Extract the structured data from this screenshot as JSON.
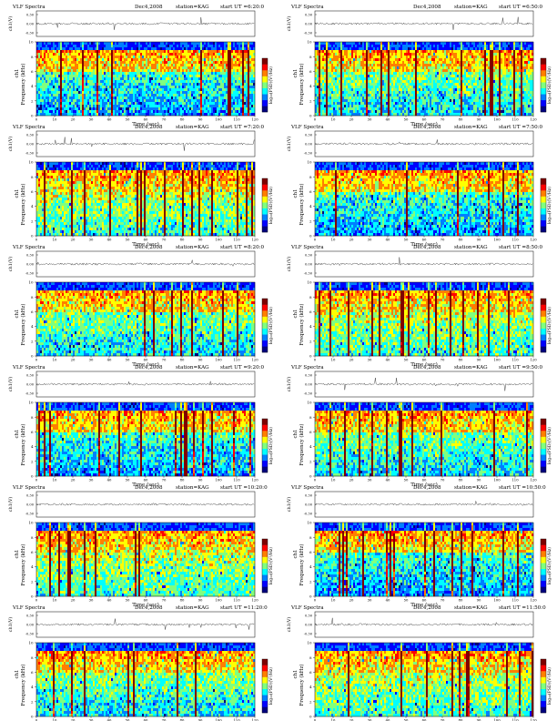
{
  "chart_data": [
    {
      "type": "heatmap",
      "title": "VLF Spectra",
      "date": "Dec4,2008",
      "station": "station=KAG",
      "start": "start  UT =6:20:0",
      "ch_label": "ch1(V)",
      "ylabel": "Frequency  (kHz)",
      "ylabel_prefix": "ch1",
      "xlabel": "Time  (sec)",
      "cbar_label": "log₁₀(PSD)(V²/Hz)",
      "x_ticks": [
        0,
        10,
        20,
        30,
        40,
        50,
        60,
        70,
        80,
        90,
        100,
        110,
        120
      ],
      "y_ticks": [
        0,
        2,
        4,
        6,
        8,
        10
      ],
      "ch_ticks": [
        "0.30",
        "0.00",
        "-0.30"
      ],
      "xlim": [
        0,
        120
      ],
      "ylim": [
        0,
        10
      ]
    },
    {
      "type": "heatmap",
      "title": "VLF Spectra",
      "date": "Dec4,2008",
      "station": "station=KAG",
      "start": "start  UT =6:50:0",
      "ch_label": "ch1(V)",
      "ylabel": "Frequency  (kHz)",
      "ylabel_prefix": "ch1",
      "xlabel": "Time  (sec)",
      "cbar_label": "log₁₀(PSD)(V²/Hz)",
      "x_ticks": [
        0,
        10,
        20,
        30,
        40,
        50,
        60,
        70,
        80,
        90,
        100,
        110,
        120
      ],
      "y_ticks": [
        0,
        2,
        4,
        6,
        8,
        10
      ],
      "ch_ticks": [
        "0.30",
        "0.00",
        "-0.30"
      ],
      "xlim": [
        0,
        120
      ],
      "ylim": [
        0,
        10
      ]
    },
    {
      "type": "heatmap",
      "title": "VLF Spectra",
      "date": "Dec4,2008",
      "station": "station=KAG",
      "start": "start  UT =7:20:0",
      "ch_label": "ch1(V)",
      "ylabel": "Frequency  (kHz)",
      "ylabel_prefix": "ch1",
      "xlabel": "Time  (sec)",
      "cbar_label": "log₁₀(PSD)(V²/Hz)",
      "x_ticks": [
        0,
        10,
        20,
        30,
        40,
        50,
        60,
        70,
        80,
        90,
        100,
        110,
        120
      ],
      "y_ticks": [
        0,
        2,
        4,
        6,
        8,
        10
      ],
      "ch_ticks": [
        "0.30",
        "0.00",
        "-0.30"
      ],
      "xlim": [
        0,
        120
      ],
      "ylim": [
        0,
        10
      ]
    },
    {
      "type": "heatmap",
      "title": "VLF Spectra",
      "date": "Dec4,2008",
      "station": "station=KAG",
      "start": "start  UT =7:50:0",
      "ch_label": "ch1(V)",
      "ylabel": "Frequency  (kHz)",
      "ylabel_prefix": "ch1",
      "xlabel": "Time  (sec)",
      "cbar_label": "log₁₀(PSD)(V²/Hz)",
      "x_ticks": [
        0,
        10,
        20,
        30,
        40,
        50,
        60,
        70,
        80,
        90,
        100,
        110,
        120
      ],
      "y_ticks": [
        0,
        2,
        4,
        6,
        8,
        10
      ],
      "ch_ticks": [
        "0.30",
        "0.00",
        "-0.30"
      ],
      "xlim": [
        0,
        120
      ],
      "ylim": [
        0,
        10
      ]
    },
    {
      "type": "heatmap",
      "title": "VLF Spectra",
      "date": "Dec4,2008",
      "station": "station=KAG",
      "start": "start  UT =8:20:0",
      "ch_label": "ch1(V)",
      "ylabel": "Frequency  (kHz)",
      "ylabel_prefix": "ch1",
      "xlabel": "Time  (sec)",
      "cbar_label": "log₁₀(PSD)(V²/Hz)",
      "x_ticks": [
        0,
        10,
        20,
        30,
        40,
        50,
        60,
        70,
        80,
        90,
        100,
        110,
        120
      ],
      "y_ticks": [
        0,
        2,
        4,
        6,
        8,
        10
      ],
      "ch_ticks": [
        "0.30",
        "0.00",
        "-0.30"
      ],
      "xlim": [
        0,
        120
      ],
      "ylim": [
        0,
        10
      ]
    },
    {
      "type": "heatmap",
      "title": "VLF Spectra",
      "date": "Dec4,2008",
      "station": "station=KAG",
      "start": "start  UT =8:50:0",
      "ch_label": "ch1(V)",
      "ylabel": "Frequency  (kHz)",
      "ylabel_prefix": "ch1",
      "xlabel": "Time  (sec)",
      "cbar_label": "log₁₀(PSD)(V²/Hz)",
      "x_ticks": [
        0,
        10,
        20,
        30,
        40,
        50,
        60,
        70,
        80,
        90,
        100,
        110,
        120
      ],
      "y_ticks": [
        0,
        2,
        4,
        6,
        8,
        10
      ],
      "ch_ticks": [
        "0.30",
        "0.00",
        "-0.30"
      ],
      "xlim": [
        0,
        120
      ],
      "ylim": [
        0,
        10
      ]
    },
    {
      "type": "heatmap",
      "title": "VLF Spectra",
      "date": "Dec4,2008",
      "station": "station=KAG",
      "start": "start  UT =9:20:0",
      "ch_label": "ch1(V)",
      "ylabel": "Frequency  (kHz)",
      "ylabel_prefix": "ch1",
      "xlabel": "Time  (sec)",
      "cbar_label": "log₁₀(PSD)(V²/Hz)",
      "x_ticks": [
        0,
        10,
        20,
        30,
        40,
        50,
        60,
        70,
        80,
        90,
        100,
        110,
        120
      ],
      "y_ticks": [
        0,
        2,
        4,
        6,
        8,
        10
      ],
      "ch_ticks": [
        "0.30",
        "0.00",
        "-0.30"
      ],
      "xlim": [
        0,
        120
      ],
      "ylim": [
        0,
        10
      ]
    },
    {
      "type": "heatmap",
      "title": "VLF Spectra",
      "date": "Dec4,2008",
      "station": "station=KAG",
      "start": "start  UT =9:50:0",
      "ch_label": "ch1(V)",
      "ylabel": "Frequency  (kHz)",
      "ylabel_prefix": "ch1",
      "xlabel": "Time  (sec)",
      "cbar_label": "log₁₀(PSD)(V²/Hz)",
      "x_ticks": [
        0,
        10,
        20,
        30,
        40,
        50,
        60,
        70,
        80,
        90,
        100,
        110,
        120
      ],
      "y_ticks": [
        0,
        2,
        4,
        6,
        8,
        10
      ],
      "ch_ticks": [
        "0.30",
        "0.00",
        "-0.30"
      ],
      "xlim": [
        0,
        120
      ],
      "ylim": [
        0,
        10
      ]
    },
    {
      "type": "heatmap",
      "title": "VLF Spectra",
      "date": "Dec4,2008",
      "station": "station=KAG",
      "start": "start  UT =10:20:0",
      "ch_label": "ch1(V)",
      "ylabel": "Frequency  (kHz)",
      "ylabel_prefix": "ch1",
      "xlabel": "Time  (sec)",
      "cbar_label": "log₁₀(PSD)(V²/Hz)",
      "x_ticks": [
        0,
        10,
        20,
        30,
        40,
        50,
        60,
        70,
        80,
        90,
        100,
        110,
        120
      ],
      "y_ticks": [
        0,
        2,
        4,
        6,
        8,
        10
      ],
      "ch_ticks": [
        "0.30",
        "0.00",
        "-0.30"
      ],
      "xlim": [
        0,
        120
      ],
      "ylim": [
        0,
        10
      ]
    },
    {
      "type": "heatmap",
      "title": "VLF Spectra",
      "date": "Dec4,2008",
      "station": "station=KAG",
      "start": "start  UT =10:50:0",
      "ch_label": "ch1(V)",
      "ylabel": "Frequency  (kHz)",
      "ylabel_prefix": "ch1",
      "xlabel": "Time  (sec)",
      "cbar_label": "log₁₀(PSD)(V²/Hz)",
      "x_ticks": [
        0,
        10,
        20,
        30,
        40,
        50,
        60,
        70,
        80,
        90,
        100,
        110,
        120
      ],
      "y_ticks": [
        0,
        2,
        4,
        6,
        8,
        10
      ],
      "ch_ticks": [
        "0.30",
        "0.00",
        "-0.30"
      ],
      "xlim": [
        0,
        120
      ],
      "ylim": [
        0,
        10
      ]
    },
    {
      "type": "heatmap",
      "title": "VLF Spectra",
      "date": "Dec4,2008",
      "station": "station=KAG",
      "start": "start  UT =11:20:0",
      "ch_label": "ch1(V)",
      "ylabel": "Frequency  (kHz)",
      "ylabel_prefix": "ch1",
      "xlabel": "Time  (sec)",
      "cbar_label": "log₁₀(PSD)(V²/Hz)",
      "x_ticks": [
        0,
        10,
        20,
        30,
        40,
        50,
        60,
        70,
        80,
        90,
        100,
        110,
        120
      ],
      "y_ticks": [
        0,
        2,
        4,
        6,
        8,
        10
      ],
      "ch_ticks": [
        "0.30",
        "0.00",
        "-0.30"
      ],
      "xlim": [
        0,
        120
      ],
      "ylim": [
        0,
        10
      ]
    },
    {
      "type": "heatmap",
      "title": "VLF Spectra",
      "date": "Dec4,2008",
      "station": "station=KAG",
      "start": "start  UT =11:50:0",
      "ch_label": "ch1(V)",
      "ylabel": "Frequency  (kHz)",
      "ylabel_prefix": "ch1",
      "xlabel": "Time  (sec)",
      "cbar_label": "log₁₀(PSD)(V²/Hz)",
      "x_ticks": [
        0,
        10,
        20,
        30,
        40,
        50,
        60,
        70,
        80,
        90,
        100,
        110,
        120
      ],
      "y_ticks": [
        0,
        2,
        4,
        6,
        8,
        10
      ],
      "ch_ticks": [
        "0.30",
        "0.00",
        "-0.30"
      ],
      "xlim": [
        0,
        120
      ],
      "ylim": [
        0,
        10
      ]
    }
  ],
  "colormap": [
    "#00007f",
    "#0000ff",
    "#007fff",
    "#00ffff",
    "#7fff7f",
    "#ffff00",
    "#ff7f00",
    "#ff0000",
    "#7f0000"
  ],
  "grid_cols": 2,
  "grid_rows": 6
}
